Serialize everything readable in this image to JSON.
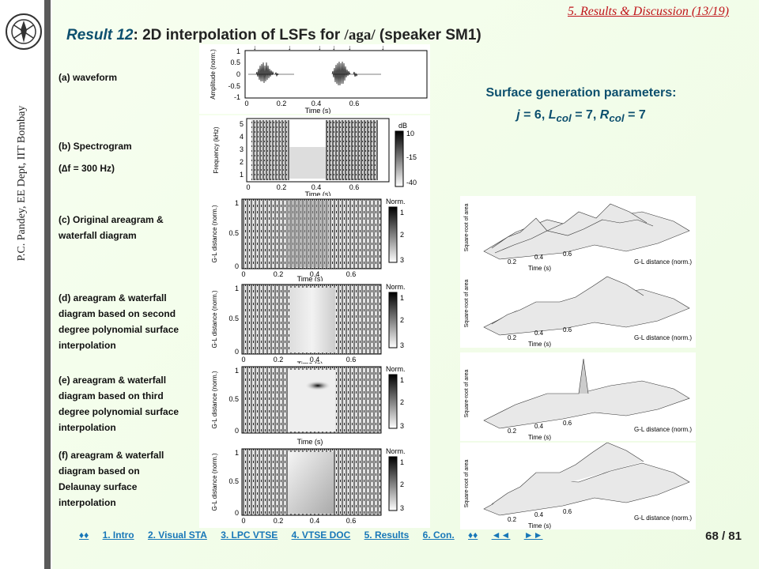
{
  "sidebar": {
    "author": "P.C. Pandey, EE Dept, IIT Bombay",
    "logo_icon": "iit-bombay-logo"
  },
  "header": {
    "section_tag": "5. Results & Discussion (13/19)",
    "title_result": "Result 12",
    "title_text": ": 2D interpolation of LSFs for ",
    "title_phoneme": "/aga/",
    "title_speaker": " (speaker SM1)"
  },
  "labels": {
    "a": "(a) waveform",
    "b1": "(b) Spectrogram",
    "b2": "(∆f = 300 Hz)",
    "c": "(c) Original areagram & waterfall diagram",
    "d": "(d) areagram & waterfall diagram based on second degree polynomial surface interpolation",
    "e": "(e) areagram & waterfall diagram based on third degree polynomial surface interpolation",
    "f": "(f) areagram & waterfall diagram based on Delaunay surface interpolation"
  },
  "params": {
    "heading": "Surface generation parameters:",
    "line": "j = 6, L_col = 7, R_col = 7"
  },
  "plot_text": {
    "time_label": "Time (s)",
    "amp_label": "Amplitude (norm.)",
    "freq_label": "Frequency (kHz)",
    "gl_label": "G-L distance (norm.)",
    "db_label": "dB",
    "norm_label": "Norm.",
    "sqrt_area_label": "Square-root of area",
    "time_ticks": [
      "0",
      "0.2",
      "0.4",
      "0.6"
    ],
    "amp_ticks": [
      "1",
      "0.5",
      "0",
      "-0.5",
      "-1"
    ],
    "freq_ticks": [
      "5",
      "4",
      "3",
      "2",
      "1"
    ],
    "gl_ticks": [
      "1",
      "0.5",
      "0"
    ],
    "db_ticks": [
      "10",
      "-15",
      "-40"
    ],
    "norm_ticks": [
      "1",
      "2",
      "3"
    ]
  },
  "nav": {
    "items": [
      "♦♦",
      "1. Intro",
      "2. Visual STA",
      "3. LPC VTSE",
      "4. VTSE DOC",
      "5. Results",
      "6. Con.",
      "♦♦",
      "◄◄",
      "►►"
    ]
  },
  "page_number": "68 / 81"
}
